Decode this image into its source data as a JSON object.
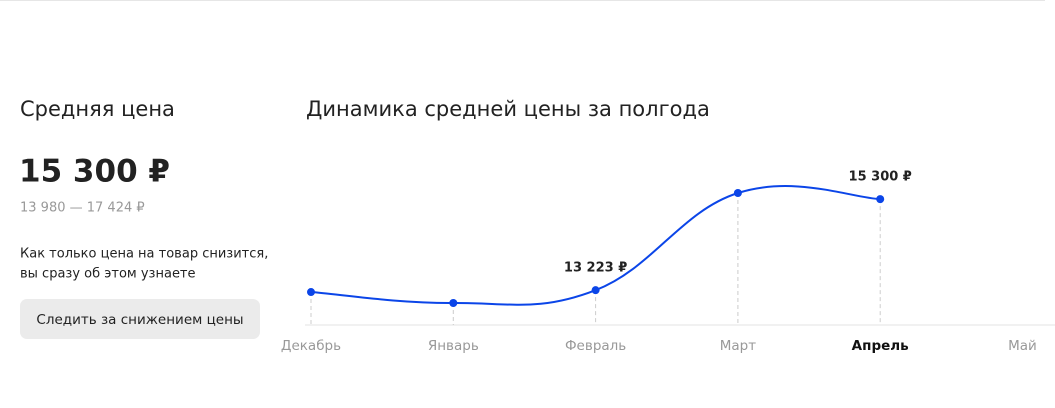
{
  "price_panel": {
    "title": "Средняя цена",
    "price": "15 300 ₽",
    "range": "13 980 — 17 424 ₽",
    "note_line1": "Как только цена на товар снизится,",
    "note_line2": "вы сразу об этом узнаете",
    "button": "Следить за снижением цены"
  },
  "chart_data": {
    "type": "line",
    "title": "Динамика средней цены за полгода",
    "categories": [
      "Декабрь",
      "Январь",
      "Февраль",
      "Март",
      "Апрель",
      "Май"
    ],
    "values": [
      13180,
      12930,
      13223,
      15440,
      15300,
      null
    ],
    "value_labels": [
      null,
      null,
      "13 223 ₽",
      null,
      "15 300 ₽",
      null
    ],
    "color": "#0b45e8"
  }
}
